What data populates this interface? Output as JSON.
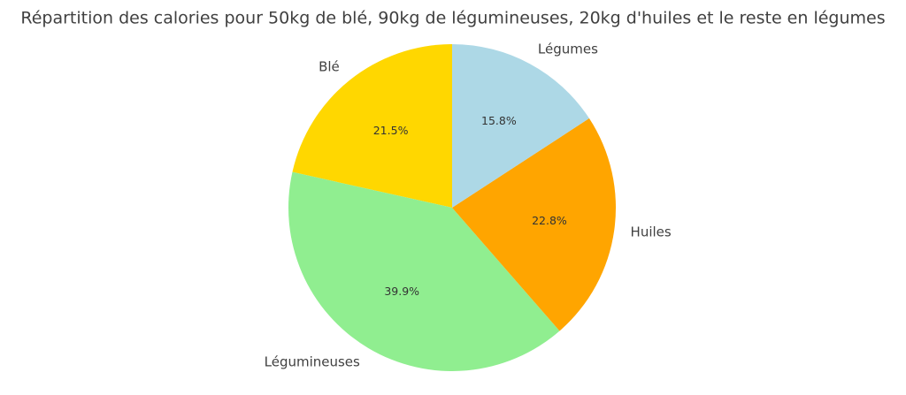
{
  "chart_data": {
    "type": "pie",
    "title": "Répartition des calories pour 50kg de blé, 90kg de légumineuses, 20kg d'huiles et le reste en légumes",
    "categories": [
      "Blé",
      "Légumineuses",
      "Huiles",
      "Légumes"
    ],
    "values": [
      21.5,
      39.9,
      22.8,
      15.8
    ],
    "value_labels": [
      "21.5%",
      "39.9%",
      "22.8%",
      "15.8%"
    ],
    "colors": [
      "#ffd700",
      "#90ee90",
      "#ffa500",
      "#add8e6"
    ]
  }
}
